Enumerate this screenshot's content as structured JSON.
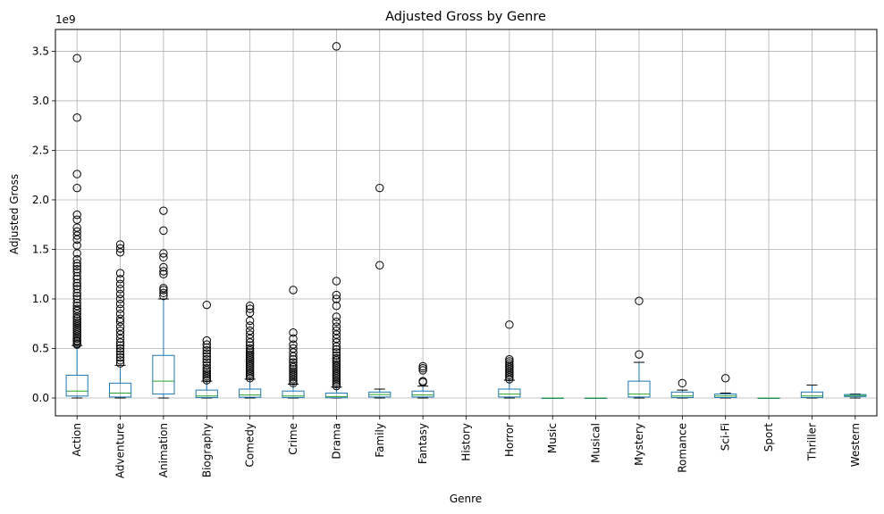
{
  "chart_data": {
    "type": "boxplot",
    "title": "Adjusted Gross by Genre",
    "xlabel": "Genre",
    "ylabel": "Adjusted Gross",
    "y_scale_label": "1e9",
    "ylim": [
      -0.18,
      3.72
    ],
    "y_ticks": [
      0.0,
      0.5,
      1.0,
      1.5,
      2.0,
      2.5,
      3.0,
      3.5
    ],
    "y_tick_labels": [
      "0.0",
      "0.5",
      "1.0",
      "1.5",
      "2.0",
      "2.5",
      "3.0",
      "3.5"
    ],
    "grid": true,
    "colors": {
      "box": "#1f77b4",
      "median": "#2ca02c",
      "whisker": "#000000",
      "grid": "#b0b0b0"
    },
    "categories": [
      "Action",
      "Adventure",
      "Animation",
      "Biography",
      "Comedy",
      "Crime",
      "Drama",
      "Family",
      "Fantasy",
      "History",
      "Horror",
      "Music",
      "Musical",
      "Mystery",
      "Romance",
      "Sci-Fi",
      "Sport",
      "Thriller",
      "Western"
    ],
    "boxes": [
      {
        "genre": "Action",
        "whisker_low": 0.0,
        "q1": 0.02,
        "median": 0.07,
        "q3": 0.23,
        "whisker_high": 0.53,
        "outliers": [
          0.54,
          0.55,
          0.57,
          0.58,
          0.6,
          0.62,
          0.64,
          0.66,
          0.68,
          0.7,
          0.72,
          0.74,
          0.76,
          0.78,
          0.8,
          0.82,
          0.85,
          0.88,
          0.9,
          0.93,
          0.96,
          1.0,
          1.03,
          1.06,
          1.1,
          1.13,
          1.16,
          1.2,
          1.23,
          1.27,
          1.3,
          1.33,
          1.36,
          1.4,
          1.46,
          1.54,
          1.6,
          1.64,
          1.68,
          1.72,
          1.8,
          1.85,
          2.12,
          2.26,
          2.83,
          3.43
        ]
      },
      {
        "genre": "Adventure",
        "whisker_low": 0.0,
        "q1": 0.01,
        "median": 0.05,
        "q3": 0.15,
        "whisker_high": 0.33,
        "outliers": [
          0.35,
          0.38,
          0.41,
          0.44,
          0.47,
          0.5,
          0.53,
          0.56,
          0.6,
          0.64,
          0.68,
          0.72,
          0.77,
          0.8,
          0.85,
          0.9,
          0.95,
          1.0,
          1.05,
          1.1,
          1.15,
          1.2,
          1.26,
          1.47,
          1.51,
          1.55
        ]
      },
      {
        "genre": "Animation",
        "whisker_low": 0.0,
        "q1": 0.04,
        "median": 0.17,
        "q3": 0.43,
        "whisker_high": 1.0,
        "outliers": [
          1.03,
          1.06,
          1.09,
          1.11,
          1.25,
          1.28,
          1.32,
          1.42,
          1.46,
          1.69,
          1.89
        ]
      },
      {
        "genre": "Biography",
        "whisker_low": 0.0,
        "q1": 0.005,
        "median": 0.02,
        "q3": 0.08,
        "whisker_high": 0.17,
        "outliers": [
          0.18,
          0.2,
          0.22,
          0.24,
          0.26,
          0.28,
          0.3,
          0.33,
          0.36,
          0.39,
          0.42,
          0.45,
          0.48,
          0.51,
          0.54,
          0.58,
          0.94
        ]
      },
      {
        "genre": "Comedy",
        "whisker_low": 0.0,
        "q1": 0.008,
        "median": 0.03,
        "q3": 0.09,
        "whisker_high": 0.19,
        "outliers": [
          0.2,
          0.22,
          0.24,
          0.26,
          0.28,
          0.3,
          0.32,
          0.34,
          0.36,
          0.38,
          0.4,
          0.42,
          0.44,
          0.46,
          0.48,
          0.5,
          0.53,
          0.56,
          0.6,
          0.64,
          0.68,
          0.73,
          0.78,
          0.86,
          0.9,
          0.93
        ]
      },
      {
        "genre": "Crime",
        "whisker_low": 0.0,
        "q1": 0.005,
        "median": 0.02,
        "q3": 0.07,
        "whisker_high": 0.14,
        "outliers": [
          0.15,
          0.17,
          0.19,
          0.21,
          0.23,
          0.25,
          0.27,
          0.29,
          0.31,
          0.33,
          0.36,
          0.39,
          0.42,
          0.46,
          0.5,
          0.54,
          0.6,
          0.66,
          1.09
        ]
      },
      {
        "genre": "Drama",
        "whisker_low": 0.0,
        "q1": 0.003,
        "median": 0.015,
        "q3": 0.05,
        "whisker_high": 0.11,
        "outliers": [
          0.12,
          0.14,
          0.16,
          0.18,
          0.2,
          0.22,
          0.24,
          0.26,
          0.28,
          0.3,
          0.32,
          0.34,
          0.36,
          0.38,
          0.4,
          0.43,
          0.46,
          0.49,
          0.52,
          0.56,
          0.6,
          0.64,
          0.68,
          0.72,
          0.77,
          0.82,
          0.93,
          1.0,
          1.04,
          1.18,
          3.55
        ]
      },
      {
        "genre": "Family",
        "whisker_low": 0.0,
        "q1": 0.01,
        "median": 0.035,
        "q3": 0.06,
        "whisker_high": 0.09,
        "outliers": [
          1.34,
          2.12
        ]
      },
      {
        "genre": "Fantasy",
        "whisker_low": 0.0,
        "q1": 0.01,
        "median": 0.03,
        "q3": 0.07,
        "whisker_high": 0.12,
        "outliers": [
          0.16,
          0.17,
          0.28,
          0.3,
          0.32
        ]
      },
      {
        "genre": "History"
      },
      {
        "genre": "Horror",
        "whisker_low": 0.0,
        "q1": 0.01,
        "median": 0.04,
        "q3": 0.09,
        "whisker_high": 0.18,
        "outliers": [
          0.19,
          0.21,
          0.23,
          0.25,
          0.27,
          0.29,
          0.31,
          0.33,
          0.35,
          0.37,
          0.39,
          0.74
        ]
      },
      {
        "genre": "Music",
        "whisker_low": 0.0,
        "q1": 0.0,
        "median": 0.0,
        "q3": 0.0,
        "whisker_high": 0.0,
        "outliers": []
      },
      {
        "genre": "Musical",
        "whisker_low": 0.0,
        "q1": 0.0,
        "median": 0.0,
        "q3": 0.0,
        "whisker_high": 0.0,
        "outliers": []
      },
      {
        "genre": "Mystery",
        "whisker_low": 0.0,
        "q1": 0.01,
        "median": 0.04,
        "q3": 0.17,
        "whisker_high": 0.36,
        "outliers": [
          0.44,
          0.98
        ]
      },
      {
        "genre": "Romance",
        "whisker_low": 0.0,
        "q1": 0.005,
        "median": 0.02,
        "q3": 0.06,
        "whisker_high": 0.08,
        "outliers": [
          0.15
        ]
      },
      {
        "genre": "Sci-Fi",
        "whisker_low": 0.0,
        "q1": 0.005,
        "median": 0.02,
        "q3": 0.04,
        "whisker_high": 0.05,
        "outliers": [
          0.2
        ]
      },
      {
        "genre": "Sport",
        "whisker_low": 0.0,
        "q1": 0.0,
        "median": 0.0,
        "q3": 0.0,
        "whisker_high": 0.0,
        "outliers": []
      },
      {
        "genre": "Thriller",
        "whisker_low": 0.0,
        "q1": 0.005,
        "median": 0.02,
        "q3": 0.06,
        "whisker_high": 0.13,
        "outliers": []
      },
      {
        "genre": "Western",
        "whisker_low": 0.0,
        "q1": 0.015,
        "median": 0.025,
        "q3": 0.035,
        "whisker_high": 0.04,
        "outliers": []
      }
    ]
  }
}
